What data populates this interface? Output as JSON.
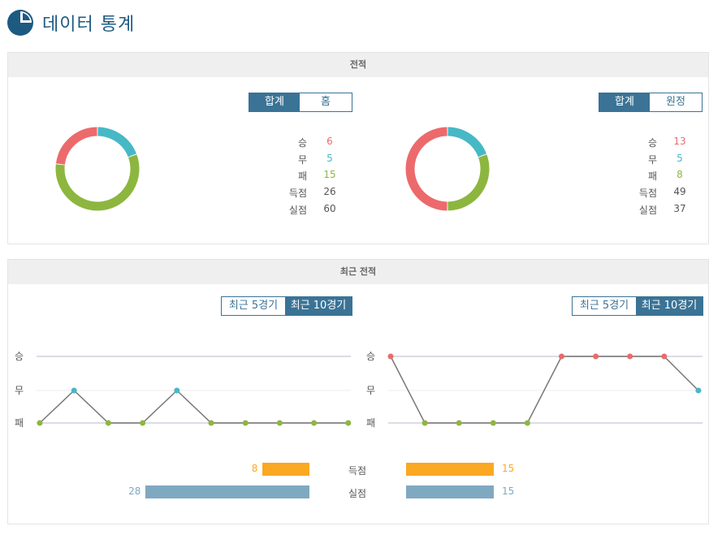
{
  "header": {
    "title": "데이터 통계"
  },
  "colors": {
    "win": "#ec6a6c",
    "draw": "#47b8c6",
    "loss": "#8db63f",
    "goals_for": "#fba823",
    "goals_against": "#7fa9c1",
    "accent": "#3a7395"
  },
  "record": {
    "title": "전적",
    "left": {
      "tabs": [
        {
          "label": "합계",
          "active": true
        },
        {
          "label": "홈",
          "active": false
        }
      ],
      "stats": [
        {
          "label": "승",
          "value": "6",
          "color": "#ec6a6c"
        },
        {
          "label": "무",
          "value": "5",
          "color": "#47b8c6"
        },
        {
          "label": "패",
          "value": "15",
          "color": "#8db63f"
        },
        {
          "label": "득점",
          "value": "26",
          "color": "#555555"
        },
        {
          "label": "실점",
          "value": "60",
          "color": "#555555"
        }
      ],
      "donut": {
        "win": 6,
        "draw": 5,
        "loss": 15
      }
    },
    "right": {
      "tabs": [
        {
          "label": "합계",
          "active": true
        },
        {
          "label": "원정",
          "active": false
        }
      ],
      "stats": [
        {
          "label": "승",
          "value": "13",
          "color": "#ec6a6c"
        },
        {
          "label": "무",
          "value": "5",
          "color": "#47b8c6"
        },
        {
          "label": "패",
          "value": "8",
          "color": "#8db63f"
        },
        {
          "label": "득점",
          "value": "49",
          "color": "#555555"
        },
        {
          "label": "실점",
          "value": "37",
          "color": "#555555"
        }
      ],
      "donut": {
        "win": 13,
        "draw": 5,
        "loss": 8
      }
    }
  },
  "recent": {
    "title": "최근 전적",
    "left": {
      "tabs": [
        {
          "label": "최근 5경기",
          "active": false
        },
        {
          "label": "최근 10경기",
          "active": true
        }
      ],
      "results": [
        "패",
        "무",
        "패",
        "패",
        "무",
        "패",
        "패",
        "패",
        "패",
        "패"
      ]
    },
    "right": {
      "tabs": [
        {
          "label": "최근 5경기",
          "active": false
        },
        {
          "label": "최근 10경기",
          "active": true
        }
      ],
      "results": [
        "승",
        "패",
        "패",
        "패",
        "패",
        "승",
        "승",
        "승",
        "승",
        "무"
      ]
    },
    "y_labels": [
      "승",
      "무",
      "패"
    ],
    "bars": [
      {
        "label": "득점",
        "left": 8,
        "right": 15,
        "type": "goals_for"
      },
      {
        "label": "실점",
        "left": 28,
        "right": 15,
        "type": "goals_against"
      }
    ]
  }
}
